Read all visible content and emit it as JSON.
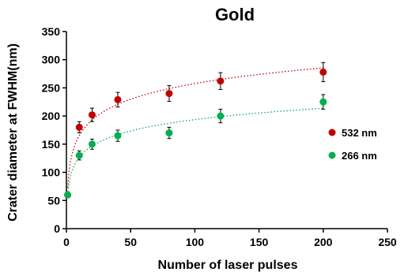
{
  "chart_data": {
    "type": "scatter",
    "title": "Gold",
    "xlabel": "Number of laser pulses",
    "ylabel": "Crater diameter at FWHM(nm)",
    "xlim": [
      0,
      250
    ],
    "ylim": [
      0,
      350
    ],
    "xticks": [
      "0",
      "50",
      "100",
      "150",
      "200",
      "250"
    ],
    "yticks": [
      "0",
      "50",
      "100",
      "150",
      "200",
      "250",
      "300",
      "350"
    ],
    "grid": false,
    "legend_position": "right",
    "trendline": "logarithmic, dotted",
    "series": [
      {
        "name": "532 nm",
        "color": "#c00000",
        "points": [
          {
            "x": 1,
            "y": 60,
            "err": 0
          },
          {
            "x": 10,
            "y": 180,
            "err": 10
          },
          {
            "x": 20,
            "y": 202,
            "err": 12
          },
          {
            "x": 40,
            "y": 229,
            "err": 13
          },
          {
            "x": 80,
            "y": 240,
            "err": 14
          },
          {
            "x": 120,
            "y": 262,
            "err": 15
          },
          {
            "x": 200,
            "y": 278,
            "err": 17
          }
        ]
      },
      {
        "name": "266 nm",
        "color": "#00b050",
        "points": [
          {
            "x": 1,
            "y": 60,
            "err": 0
          },
          {
            "x": 10,
            "y": 130,
            "err": 8
          },
          {
            "x": 20,
            "y": 150,
            "err": 9
          },
          {
            "x": 40,
            "y": 165,
            "err": 10
          },
          {
            "x": 80,
            "y": 170,
            "err": 10
          },
          {
            "x": 120,
            "y": 200,
            "err": 12
          },
          {
            "x": 200,
            "y": 225,
            "err": 13
          }
        ]
      }
    ]
  }
}
